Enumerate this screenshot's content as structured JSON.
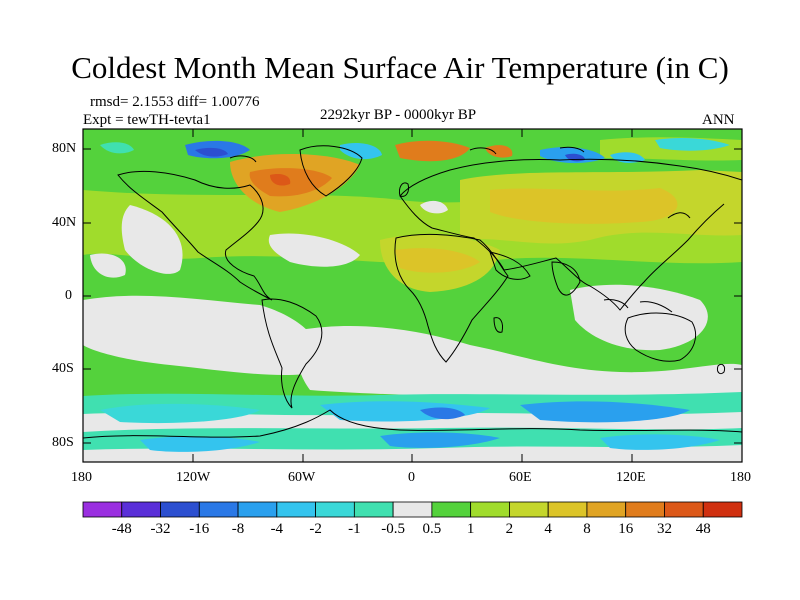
{
  "title": "Coldest Month Mean Surface Air Temperature (in C)",
  "stats": "rmsd= 2.1553 diff= 1.00776",
  "experiment": "Expt = tewTH-tevta1",
  "period": "2292kyr BP - 0000kyr BP",
  "season": "ANN",
  "lat_labels": [
    "80N",
    "40N",
    "0",
    "40S",
    "80S"
  ],
  "lon_labels": [
    "180",
    "120W",
    "60W",
    "0",
    "60E",
    "120E",
    "180"
  ],
  "colorbar": {
    "colors": [
      "#9a2fe0",
      "#5a2fd8",
      "#2c4fd0",
      "#2a78e6",
      "#2aa0ee",
      "#34c4ee",
      "#3ad8d8",
      "#40e0b0",
      "#e8e8e8",
      "#54d23c",
      "#a0dc2c",
      "#c4d62c",
      "#dcc428",
      "#e0a424",
      "#e07c1c",
      "#dc5818",
      "#d03010"
    ],
    "labels": [
      "-48",
      "-32",
      "-16",
      "-8",
      "-4",
      "-2",
      "-1",
      "-0.5",
      "0.5",
      "1",
      "2",
      "4",
      "8",
      "16",
      "32",
      "48"
    ]
  }
}
